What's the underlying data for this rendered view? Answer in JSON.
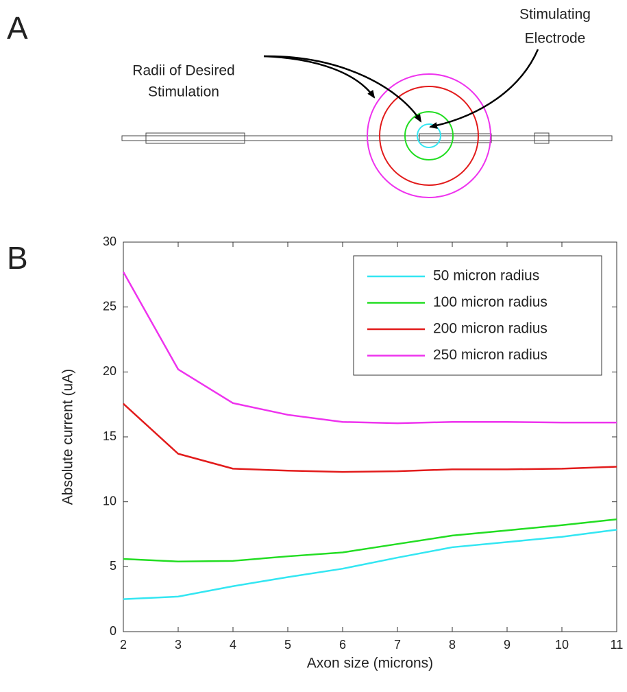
{
  "diagram": {
    "panel_label": "A",
    "annotations": [
      [
        "Radii of Desired",
        "Stimulation"
      ],
      [
        "Stimulating",
        "Electrode"
      ]
    ]
  },
  "chart_data": {
    "type": "line",
    "panel_label": "B",
    "xlabel": "Axon size (microns)",
    "ylabel": "Absolute current (uA)",
    "x": [
      2,
      3,
      4,
      5,
      6,
      7,
      8,
      9,
      10,
      11
    ],
    "series": [
      {
        "name": "50 micron radius",
        "color": "#33e6f2",
        "values": [
          2.5,
          2.7,
          3.5,
          4.2,
          4.85,
          5.7,
          6.5,
          6.9,
          7.3,
          7.85
        ]
      },
      {
        "name": "100 micron radius",
        "color": "#22dd22",
        "values": [
          5.6,
          5.4,
          5.45,
          5.8,
          6.1,
          6.75,
          7.4,
          7.8,
          8.2,
          8.65
        ]
      },
      {
        "name": "200 micron radius",
        "color": "#e21b1b",
        "values": [
          17.55,
          13.7,
          12.55,
          12.4,
          12.3,
          12.35,
          12.5,
          12.5,
          12.55,
          12.7
        ]
      },
      {
        "name": "250 micron radius",
        "color": "#ee33ee",
        "values": [
          27.7,
          20.2,
          17.6,
          16.7,
          16.15,
          16.05,
          16.15,
          16.15,
          16.1,
          16.1
        ]
      }
    ],
    "xlim": [
      2,
      11
    ],
    "ylim": [
      0,
      30
    ],
    "xticks": [
      2,
      3,
      4,
      5,
      6,
      7,
      8,
      9,
      10,
      11
    ],
    "yticks": [
      0,
      5,
      10,
      15,
      20,
      25,
      30
    ],
    "legend": "upper right"
  }
}
